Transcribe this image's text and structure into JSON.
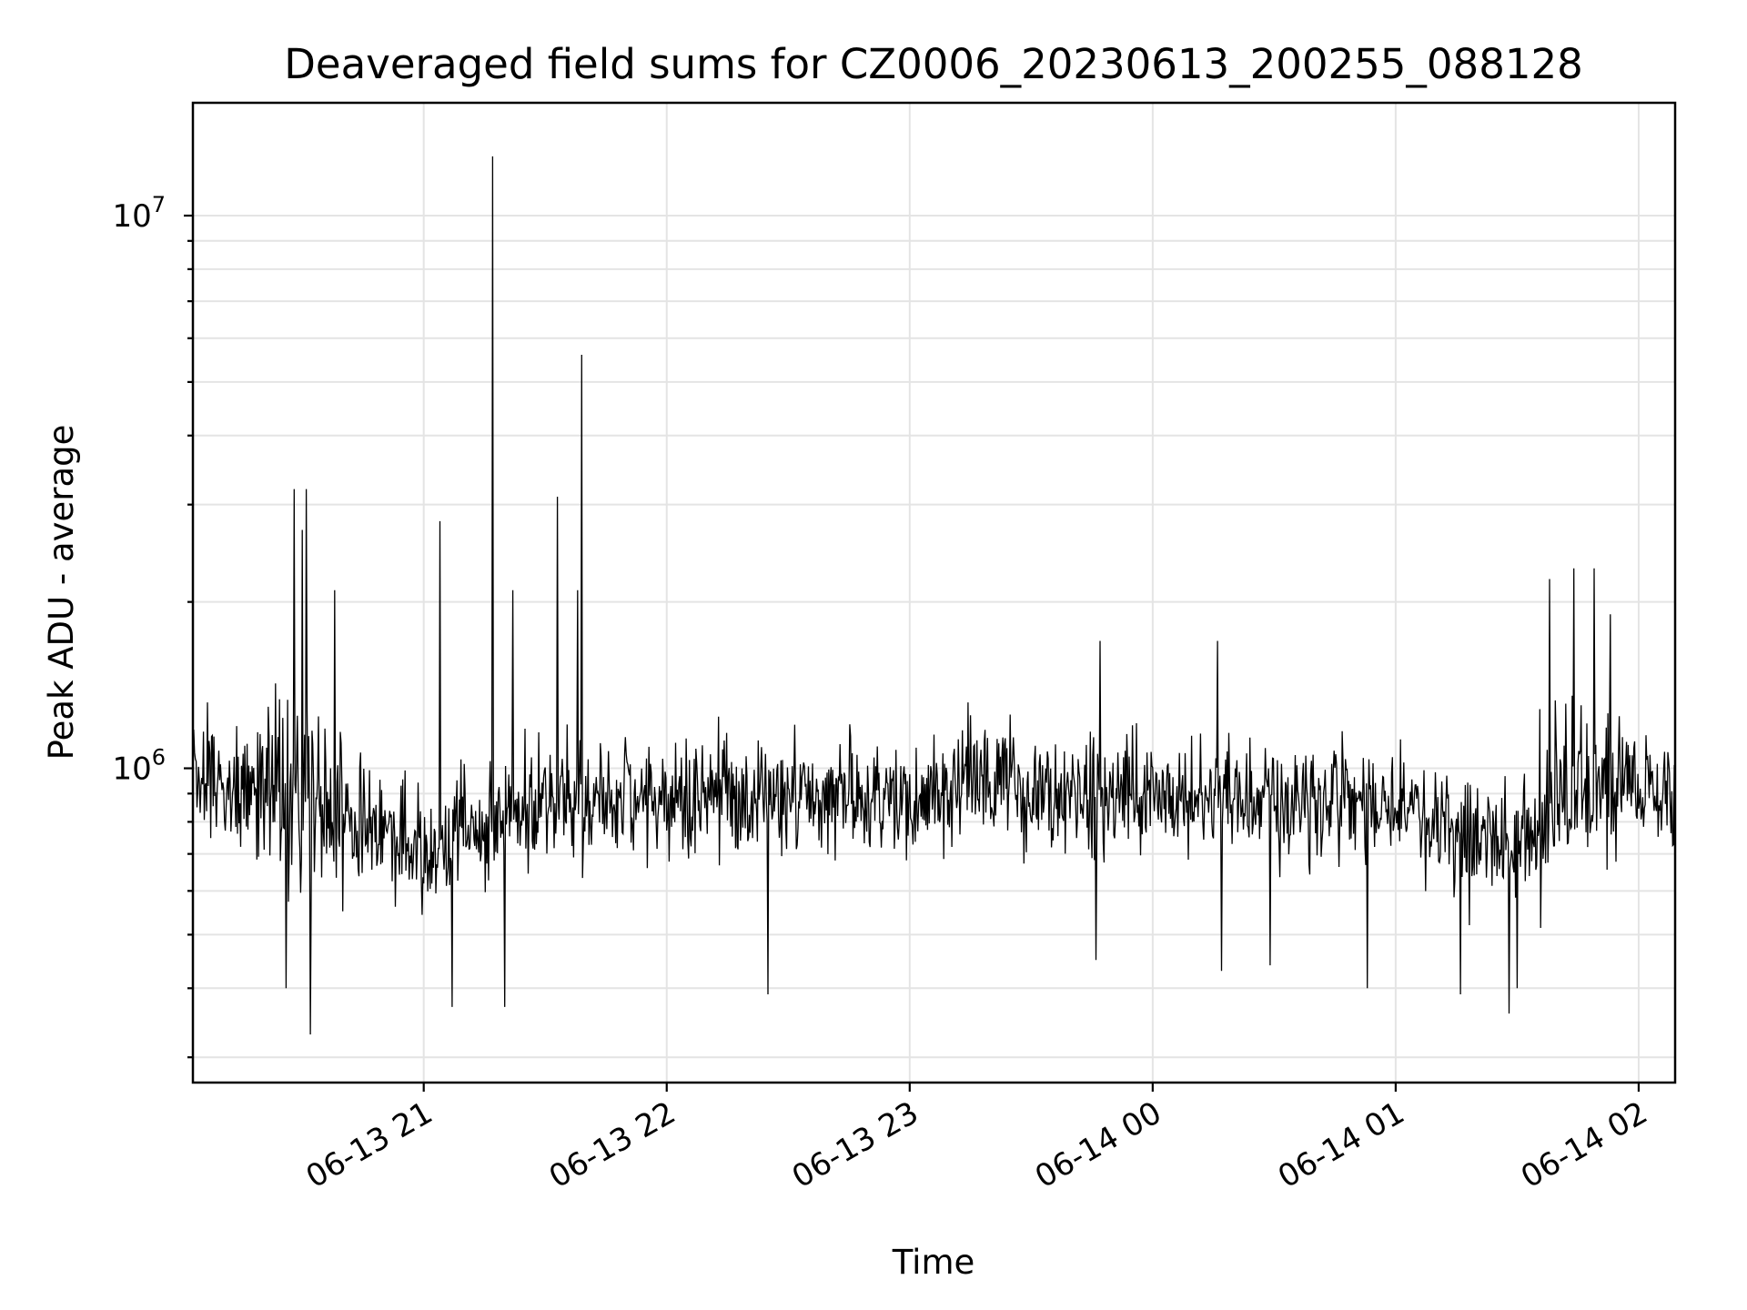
{
  "chart_data": {
    "type": "line",
    "title": "Deaveraged field sums for CZ0006_20230613_200255_088128",
    "xlabel": "Time",
    "ylabel": "Peak ADU - average",
    "y_scale": "log",
    "grid": true,
    "x_range": [
      "2023-06-13 20:03",
      "2023-06-14 02:09"
    ],
    "ylim": [
      270000,
      16000000
    ],
    "x_ticks": [
      "06-13 21",
      "06-13 22",
      "06-13 23",
      "06-14 00",
      "06-14 01",
      "06-14 02"
    ],
    "y_ticks": [
      "10^7",
      "10^6"
    ],
    "series": [
      {
        "color": "#000000",
        "base_points": [
          [
            "2023-06-13 20:03",
            950000
          ],
          [
            "2023-06-13 20:15",
            950000
          ],
          [
            "2023-06-13 20:30",
            880000
          ],
          [
            "2023-06-13 20:45",
            780000
          ],
          [
            "2023-06-13 21:00",
            720000
          ],
          [
            "2023-06-13 21:15",
            800000
          ],
          [
            "2023-06-13 21:30",
            880000
          ],
          [
            "2023-06-13 22:00",
            870000
          ],
          [
            "2023-06-13 22:30",
            880000
          ],
          [
            "2023-06-13 23:00",
            890000
          ],
          [
            "2023-06-13 23:15",
            960000
          ],
          [
            "2023-06-13 23:30",
            900000
          ],
          [
            "2023-06-14 00:00",
            900000
          ],
          [
            "2023-06-14 00:30",
            880000
          ],
          [
            "2023-06-14 01:00",
            860000
          ],
          [
            "2023-06-14 01:15",
            760000
          ],
          [
            "2023-06-14 01:30",
            750000
          ],
          [
            "2023-06-14 01:40",
            900000
          ],
          [
            "2023-06-14 01:50",
            900000
          ],
          [
            "2023-06-14 02:09",
            950000
          ]
        ],
        "spikes": [
          [
            "2023-06-13 20:28",
            3200000
          ],
          [
            "2023-06-13 20:31",
            3200000
          ],
          [
            "2023-06-13 20:38",
            2100000
          ],
          [
            "2023-06-13 20:30",
            2700000
          ],
          [
            "2023-06-13 20:26",
            400000
          ],
          [
            "2023-06-13 20:32",
            330000
          ],
          [
            "2023-06-13 21:04",
            2800000
          ],
          [
            "2023-06-13 21:07",
            370000
          ],
          [
            "2023-06-13 21:17",
            12800000
          ],
          [
            "2023-06-13 21:20",
            370000
          ],
          [
            "2023-06-13 21:22",
            2100000
          ],
          [
            "2023-06-13 21:33",
            3100000
          ],
          [
            "2023-06-13 21:39",
            5600000
          ],
          [
            "2023-06-13 21:38",
            2100000
          ],
          [
            "2023-06-13 22:25",
            390000
          ],
          [
            "2023-06-13 23:47",
            1700000
          ],
          [
            "2023-06-13 23:46",
            450000
          ],
          [
            "2023-06-14 00:16",
            1700000
          ],
          [
            "2023-06-14 00:17",
            430000
          ],
          [
            "2023-06-14 00:29",
            440000
          ],
          [
            "2023-06-14 00:53",
            400000
          ],
          [
            "2023-06-14 01:16",
            390000
          ],
          [
            "2023-06-14 01:28",
            360000
          ],
          [
            "2023-06-14 01:30",
            400000
          ],
          [
            "2023-06-14 01:38",
            2200000
          ],
          [
            "2023-06-14 01:44",
            2300000
          ],
          [
            "2023-06-14 01:49",
            2300000
          ],
          [
            "2023-06-14 01:53",
            1900000
          ]
        ]
      }
    ]
  }
}
